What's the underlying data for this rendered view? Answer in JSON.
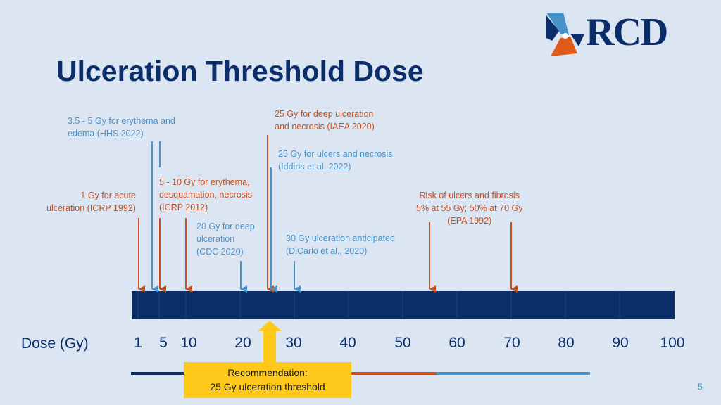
{
  "title": "Ulceration Threshold Dose",
  "logo": {
    "text": "RCD"
  },
  "axis": {
    "label": "Dose (Gy)",
    "ticks": [
      "1",
      "5",
      "10",
      "20",
      "30",
      "40",
      "50",
      "60",
      "70",
      "80",
      "90",
      "100"
    ]
  },
  "annotations": {
    "hhs": "3.5 - 5 Gy for erythema and\nedema (HHS 2022)",
    "icrp1992": "1 Gy for acute\nulceration (ICRP 1992)",
    "icrp2012": "5 - 10 Gy for erythema,\ndesquamation, necrosis\n(ICRP 2012)",
    "cdc": "20 Gy for deep\nulceration\n(CDC 2020)",
    "iaea": "25 Gy for deep ulceration\nand necrosis (IAEA 2020)",
    "iddins": "25 Gy for ulcers and necrosis\n(Iddins et al. 2022)",
    "dicarlo": "30 Gy ulceration anticipated\n(DiCarlo et al., 2020)",
    "epa": "Risk of ulcers and fibrosis\n5% at 55 Gy; 50% at 70 Gy\n(EPA 1992)"
  },
  "recommendation": {
    "line1": "Recommendation:",
    "line2": "25 Gy ulceration threshold"
  },
  "page_number": "5",
  "colors": {
    "background": "#dce6f2",
    "navy": "#0b2e6b",
    "blue_arrow": "#4a93c9",
    "red_arrow": "#c8501f",
    "recommendation": "#ffc91c"
  }
}
